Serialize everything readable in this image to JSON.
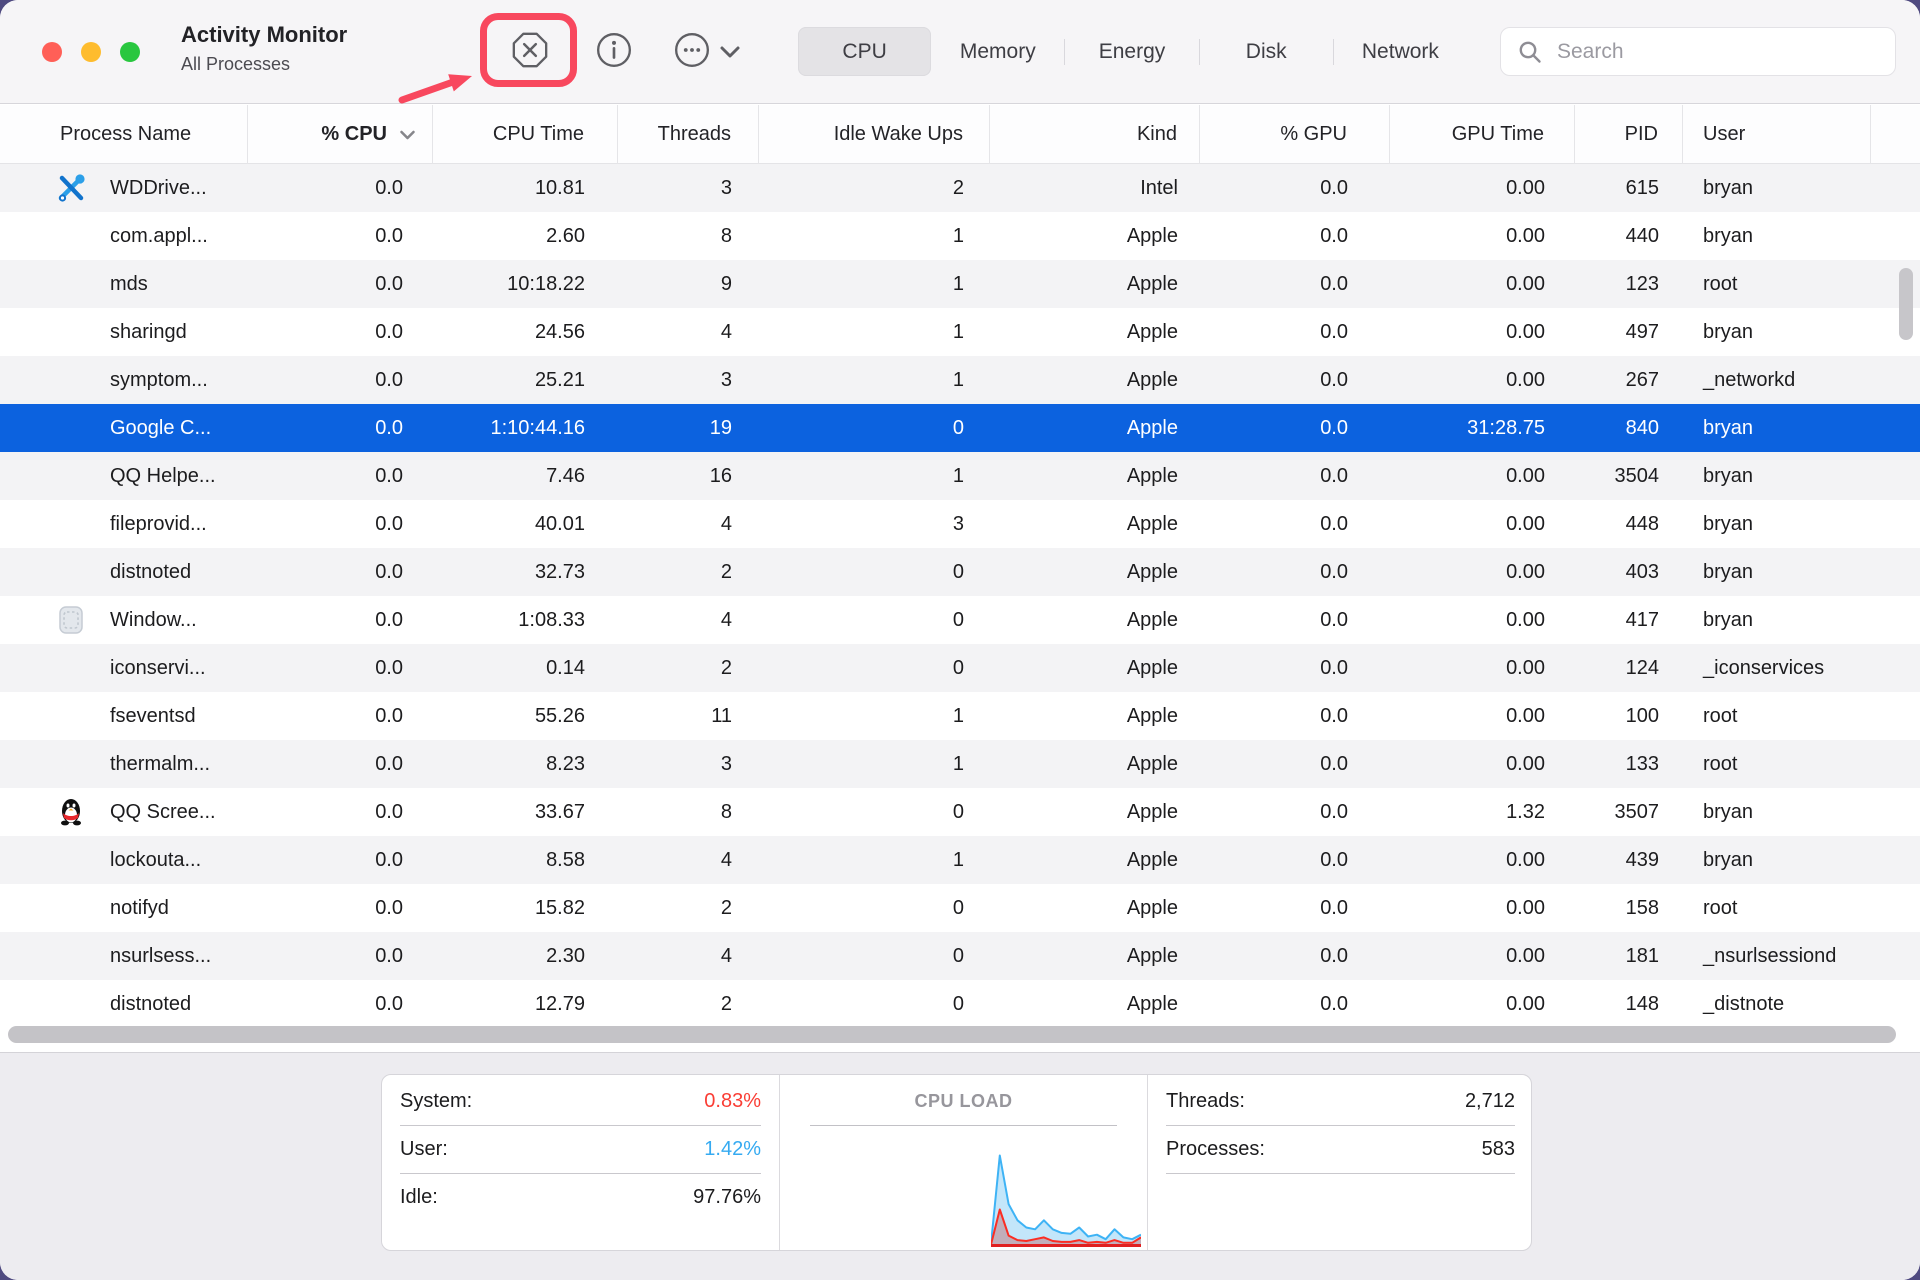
{
  "window": {
    "title": "Activity Monitor",
    "subtitle": "All Processes",
    "background_color": "#4f4a80",
    "accent_selected_row": "#0c62df",
    "annotation_color": "#f8485e"
  },
  "toolbar": {
    "icons": [
      "stop-icon",
      "info-icon",
      "ellipsis-icon",
      "chevron-down-icon"
    ],
    "tabs": [
      {
        "label": "CPU",
        "active": true
      },
      {
        "label": "Memory",
        "active": false
      },
      {
        "label": "Energy",
        "active": false
      },
      {
        "label": "Disk",
        "active": false
      },
      {
        "label": "Network",
        "active": false
      }
    ],
    "search": {
      "placeholder": "Search",
      "icon": "search-icon"
    }
  },
  "table": {
    "columns": [
      "Process Name",
      "% CPU",
      "CPU Time",
      "Threads",
      "Idle Wake Ups",
      "Kind",
      "% GPU",
      "GPU Time",
      "PID",
      "User"
    ],
    "sorted_column": "% CPU",
    "sort_direction": "descending",
    "rows": [
      {
        "name": "WDDrive...",
        "icon": "wd-drive-utilities-icon",
        "cpu": "0.0",
        "time": "10.81",
        "threads": "3",
        "wakeups": "2",
        "kind": "Intel",
        "gpu": "0.0",
        "gputime": "0.00",
        "pid": "615",
        "user": "bryan",
        "selected": false
      },
      {
        "name": "com.appl...",
        "icon": null,
        "cpu": "0.0",
        "time": "2.60",
        "threads": "8",
        "wakeups": "1",
        "kind": "Apple",
        "gpu": "0.0",
        "gputime": "0.00",
        "pid": "440",
        "user": "bryan",
        "selected": false
      },
      {
        "name": "mds",
        "icon": null,
        "cpu": "0.0",
        "time": "10:18.22",
        "threads": "9",
        "wakeups": "1",
        "kind": "Apple",
        "gpu": "0.0",
        "gputime": "0.00",
        "pid": "123",
        "user": "root",
        "selected": false
      },
      {
        "name": "sharingd",
        "icon": null,
        "cpu": "0.0",
        "time": "24.56",
        "threads": "4",
        "wakeups": "1",
        "kind": "Apple",
        "gpu": "0.0",
        "gputime": "0.00",
        "pid": "497",
        "user": "bryan",
        "selected": false
      },
      {
        "name": "symptom...",
        "icon": null,
        "cpu": "0.0",
        "time": "25.21",
        "threads": "3",
        "wakeups": "1",
        "kind": "Apple",
        "gpu": "0.0",
        "gputime": "0.00",
        "pid": "267",
        "user": "_networkd",
        "selected": false
      },
      {
        "name": "Google C...",
        "icon": null,
        "cpu": "0.0",
        "time": "1:10:44.16",
        "threads": "19",
        "wakeups": "0",
        "kind": "Apple",
        "gpu": "0.0",
        "gputime": "31:28.75",
        "pid": "840",
        "user": "bryan",
        "selected": true
      },
      {
        "name": "QQ Helpe...",
        "icon": null,
        "cpu": "0.0",
        "time": "7.46",
        "threads": "16",
        "wakeups": "1",
        "kind": "Apple",
        "gpu": "0.0",
        "gputime": "0.00",
        "pid": "3504",
        "user": "bryan",
        "selected": false
      },
      {
        "name": "fileprovid...",
        "icon": null,
        "cpu": "0.0",
        "time": "40.01",
        "threads": "4",
        "wakeups": "3",
        "kind": "Apple",
        "gpu": "0.0",
        "gputime": "0.00",
        "pid": "448",
        "user": "bryan",
        "selected": false
      },
      {
        "name": "distnoted",
        "icon": null,
        "cpu": "0.0",
        "time": "32.73",
        "threads": "2",
        "wakeups": "0",
        "kind": "Apple",
        "gpu": "0.0",
        "gputime": "0.00",
        "pid": "403",
        "user": "bryan",
        "selected": false
      },
      {
        "name": "Window...",
        "icon": "window-server-icon",
        "cpu": "0.0",
        "time": "1:08.33",
        "threads": "4",
        "wakeups": "0",
        "kind": "Apple",
        "gpu": "0.0",
        "gputime": "0.00",
        "pid": "417",
        "user": "bryan",
        "selected": false
      },
      {
        "name": "iconservi...",
        "icon": null,
        "cpu": "0.0",
        "time": "0.14",
        "threads": "2",
        "wakeups": "0",
        "kind": "Apple",
        "gpu": "0.0",
        "gputime": "0.00",
        "pid": "124",
        "user": "_iconservices",
        "selected": false
      },
      {
        "name": "fseventsd",
        "icon": null,
        "cpu": "0.0",
        "time": "55.26",
        "threads": "11",
        "wakeups": "1",
        "kind": "Apple",
        "gpu": "0.0",
        "gputime": "0.00",
        "pid": "100",
        "user": "root",
        "selected": false
      },
      {
        "name": "thermalm...",
        "icon": null,
        "cpu": "0.0",
        "time": "8.23",
        "threads": "3",
        "wakeups": "1",
        "kind": "Apple",
        "gpu": "0.0",
        "gputime": "0.00",
        "pid": "133",
        "user": "root",
        "selected": false
      },
      {
        "name": "QQ Scree...",
        "icon": "qq-icon",
        "cpu": "0.0",
        "time": "33.67",
        "threads": "8",
        "wakeups": "0",
        "kind": "Apple",
        "gpu": "0.0",
        "gputime": "1.32",
        "pid": "3507",
        "user": "bryan",
        "selected": false
      },
      {
        "name": "lockouta...",
        "icon": null,
        "cpu": "0.0",
        "time": "8.58",
        "threads": "4",
        "wakeups": "1",
        "kind": "Apple",
        "gpu": "0.0",
        "gputime": "0.00",
        "pid": "439",
        "user": "bryan",
        "selected": false
      },
      {
        "name": "notifyd",
        "icon": null,
        "cpu": "0.0",
        "time": "15.82",
        "threads": "2",
        "wakeups": "0",
        "kind": "Apple",
        "gpu": "0.0",
        "gputime": "0.00",
        "pid": "158",
        "user": "root",
        "selected": false
      },
      {
        "name": "nsurlsess...",
        "icon": null,
        "cpu": "0.0",
        "time": "2.30",
        "threads": "4",
        "wakeups": "0",
        "kind": "Apple",
        "gpu": "0.0",
        "gputime": "0.00",
        "pid": "181",
        "user": "_nsurlsessiond",
        "selected": false
      },
      {
        "name": "distnoted",
        "icon": null,
        "cpu": "0.0",
        "time": "12.79",
        "threads": "2",
        "wakeups": "0",
        "kind": "Apple",
        "gpu": "0.0",
        "gputime": "0.00",
        "pid": "148",
        "user": "_distnote",
        "selected": false
      }
    ]
  },
  "footer": {
    "system_label": "System:",
    "system_value": "0.83%",
    "user_label": "User:",
    "user_value": "1.42%",
    "idle_label": "Idle:",
    "idle_value": "97.76%",
    "threads_label": "Threads:",
    "threads_value": "2,712",
    "processes_label": "Processes:",
    "processes_value": "583"
  },
  "chart_data": {
    "type": "area",
    "title": "CPU LOAD",
    "ylim": [
      0,
      100
    ],
    "grid": false,
    "legend": "none",
    "series": [
      {
        "name": "user",
        "color": "#3eb3f5",
        "values": [
          2,
          100,
          46,
          28,
          20,
          18,
          28,
          18,
          14,
          13,
          20,
          10,
          12,
          7,
          18,
          9,
          7,
          12
        ]
      },
      {
        "name": "system",
        "color": "#fb2d23",
        "values": [
          1,
          40,
          11,
          6,
          5,
          7,
          9,
          5,
          4,
          4,
          6,
          3,
          4,
          3,
          6,
          3,
          3,
          9
        ]
      }
    ]
  }
}
